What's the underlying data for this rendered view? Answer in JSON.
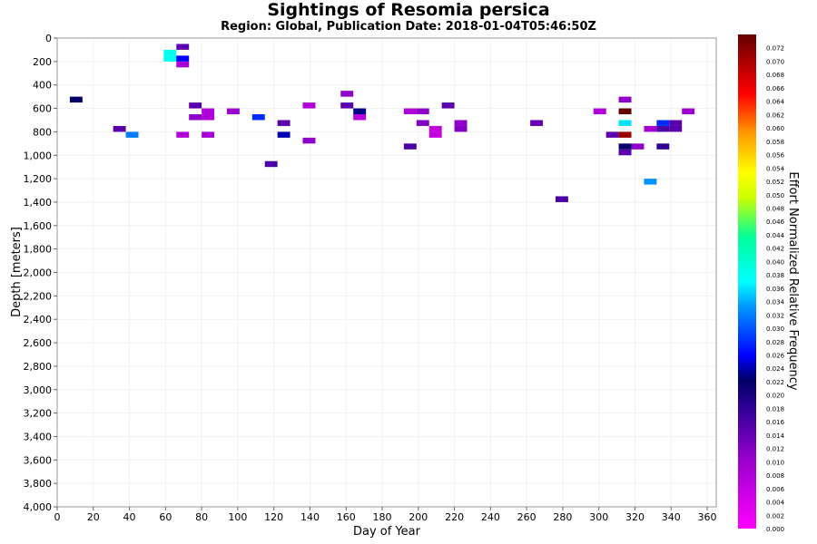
{
  "chart_data": {
    "type": "heatmap",
    "title": "Sightings of Resomia persica",
    "subtitle": "Region: Global, Publication Date: 2018-01-04T05:46:50Z",
    "xlabel": "Day of Year",
    "ylabel": "Depth [meters]",
    "colorbar_label": "Effort Normalized Relative Frequency",
    "xlim": [
      0,
      365
    ],
    "ylim": [
      0,
      4000
    ],
    "y_inverted": true,
    "x_ticks": [
      0,
      20,
      40,
      60,
      80,
      100,
      120,
      140,
      160,
      180,
      200,
      220,
      240,
      260,
      280,
      300,
      320,
      340,
      360
    ],
    "y_ticks": [
      0,
      200,
      400,
      600,
      800,
      1000,
      1200,
      1400,
      1600,
      1800,
      2000,
      2200,
      2400,
      2600,
      2800,
      3000,
      3200,
      3400,
      3600,
      3800,
      4000
    ],
    "y_tick_labels": [
      "0",
      "200",
      "400",
      "600",
      "800",
      "1,000",
      "1,200",
      "1,400",
      "1,600",
      "1,800",
      "2,000",
      "2,200",
      "2,400",
      "2,600",
      "2,800",
      "3,000",
      "3,200",
      "3,400",
      "3,600",
      "3,800",
      "4,000"
    ],
    "colorbar_ticks": [
      "0.000",
      "0.002",
      "0.004",
      "0.006",
      "0.008",
      "0.010",
      "0.012",
      "0.014",
      "0.016",
      "0.018",
      "0.020",
      "0.022",
      "0.024",
      "0.026",
      "0.028",
      "0.030",
      "0.032",
      "0.034",
      "0.036",
      "0.038",
      "0.040",
      "0.042",
      "0.044",
      "0.046",
      "0.048",
      "0.050",
      "0.052",
      "0.054",
      "0.056",
      "0.058",
      "0.060",
      "0.062",
      "0.064",
      "0.066",
      "0.068",
      "0.070",
      "0.072"
    ],
    "colorbar_range": [
      0,
      0.074
    ],
    "cell_size": {
      "day": 7,
      "depth": 50
    },
    "cells": [
      {
        "day": 7,
        "depth": 500,
        "value": 0.022
      },
      {
        "day": 59,
        "depth": 100,
        "value": 0.038
      },
      {
        "day": 59,
        "depth": 150,
        "value": 0.038
      },
      {
        "day": 66,
        "depth": 50,
        "value": 0.015
      },
      {
        "day": 66,
        "depth": 150,
        "value": 0.026
      },
      {
        "day": 66,
        "depth": 200,
        "value": 0.009
      },
      {
        "day": 31,
        "depth": 750,
        "value": 0.015
      },
      {
        "day": 38,
        "depth": 800,
        "value": 0.032
      },
      {
        "day": 73,
        "depth": 550,
        "value": 0.015
      },
      {
        "day": 73,
        "depth": 650,
        "value": 0.011
      },
      {
        "day": 80,
        "depth": 600,
        "value": 0.008
      },
      {
        "day": 80,
        "depth": 650,
        "value": 0.008
      },
      {
        "day": 66,
        "depth": 800,
        "value": 0.008
      },
      {
        "day": 80,
        "depth": 800,
        "value": 0.009
      },
      {
        "day": 94,
        "depth": 600,
        "value": 0.01
      },
      {
        "day": 108,
        "depth": 650,
        "value": 0.028
      },
      {
        "day": 115,
        "depth": 1050,
        "value": 0.016
      },
      {
        "day": 122,
        "depth": 700,
        "value": 0.015
      },
      {
        "day": 122,
        "depth": 800,
        "value": 0.024
      },
      {
        "day": 136,
        "depth": 550,
        "value": 0.008
      },
      {
        "day": 136,
        "depth": 850,
        "value": 0.011
      },
      {
        "day": 157,
        "depth": 450,
        "value": 0.011
      },
      {
        "day": 157,
        "depth": 550,
        "value": 0.015
      },
      {
        "day": 164,
        "depth": 600,
        "value": 0.023
      },
      {
        "day": 164,
        "depth": 650,
        "value": 0.007
      },
      {
        "day": 192,
        "depth": 600,
        "value": 0.008
      },
      {
        "day": 192,
        "depth": 900,
        "value": 0.016
      },
      {
        "day": 199,
        "depth": 600,
        "value": 0.011
      },
      {
        "day": 199,
        "depth": 700,
        "value": 0.012
      },
      {
        "day": 206,
        "depth": 750,
        "value": 0.006
      },
      {
        "day": 206,
        "depth": 800,
        "value": 0.006
      },
      {
        "day": 213,
        "depth": 550,
        "value": 0.015
      },
      {
        "day": 220,
        "depth": 700,
        "value": 0.011
      },
      {
        "day": 220,
        "depth": 750,
        "value": 0.012
      },
      {
        "day": 262,
        "depth": 700,
        "value": 0.014
      },
      {
        "day": 276,
        "depth": 1350,
        "value": 0.016
      },
      {
        "day": 297,
        "depth": 600,
        "value": 0.008
      },
      {
        "day": 304,
        "depth": 800,
        "value": 0.015
      },
      {
        "day": 311,
        "depth": 500,
        "value": 0.011
      },
      {
        "day": 311,
        "depth": 600,
        "value": 0.074
      },
      {
        "day": 311,
        "depth": 700,
        "value": 0.036
      },
      {
        "day": 311,
        "depth": 800,
        "value": 0.071
      },
      {
        "day": 311,
        "depth": 900,
        "value": 0.022
      },
      {
        "day": 311,
        "depth": 950,
        "value": 0.015
      },
      {
        "day": 318,
        "depth": 900,
        "value": 0.011
      },
      {
        "day": 325,
        "depth": 750,
        "value": 0.009
      },
      {
        "day": 325,
        "depth": 1200,
        "value": 0.033
      },
      {
        "day": 332,
        "depth": 700,
        "value": 0.028
      },
      {
        "day": 332,
        "depth": 750,
        "value": 0.016
      },
      {
        "day": 332,
        "depth": 900,
        "value": 0.018
      },
      {
        "day": 339,
        "depth": 700,
        "value": 0.015
      },
      {
        "day": 339,
        "depth": 750,
        "value": 0.015
      },
      {
        "day": 346,
        "depth": 600,
        "value": 0.01
      }
    ]
  }
}
